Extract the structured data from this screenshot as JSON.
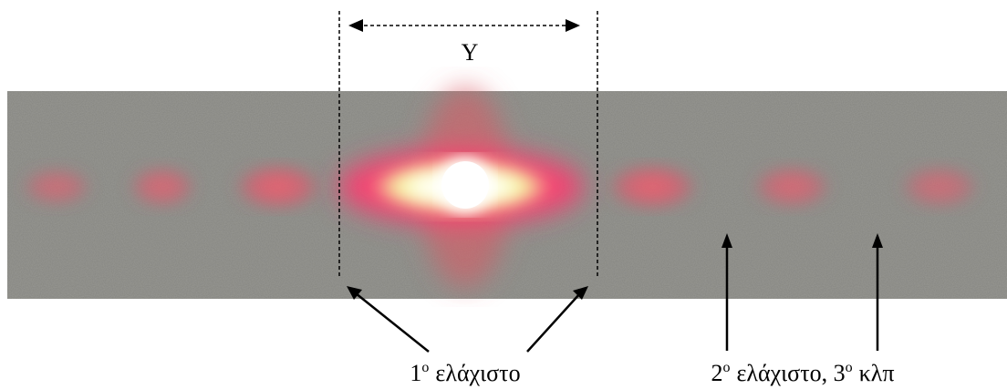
{
  "dimension_label": "Y",
  "minimum_1": [
    "1",
    "o",
    "ελάχιστο"
  ],
  "minimum_2": [
    "2",
    "o",
    "ελάχιστο, 3",
    "o",
    "κλπ"
  ]
}
